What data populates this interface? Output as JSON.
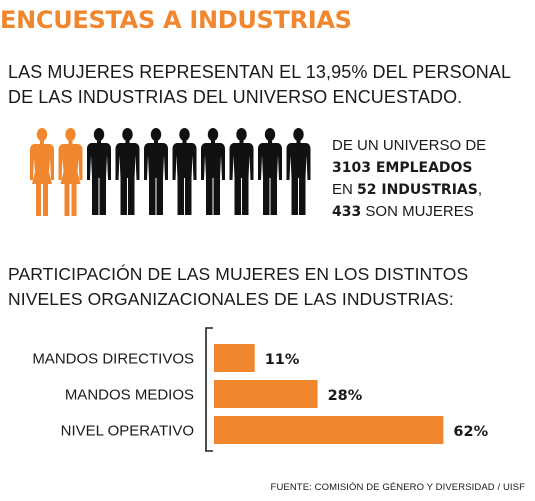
{
  "header": {
    "title": "ENCUESTAS A INDUSTRIAS",
    "lead_lines": [
      "LAS MUJERES REPRESENTAN EL 13,95% DEL PERSONAL",
      "DE LAS INDUSTRIAS DEL UNIVERSO ENCUESTADO."
    ]
  },
  "pictogram": {
    "women_count": 2,
    "men_count": 8,
    "women_color": "#f0862e",
    "men_color": "#111111"
  },
  "stats": {
    "line1": "DE UN UNIVERSO DE",
    "employees_bold": "3103 EMPLEADOS",
    "line3_prefix": "EN ",
    "industries_bold": "52 INDUSTRIAS",
    "line3_suffix": ",",
    "women_bold": "433",
    "line4_suffix": " SON MUJERES"
  },
  "subtitle_lines": [
    "PARTICIPACIÓN DE LAS MUJERES EN LOS DISTINTOS",
    "NIVELES ORGANIZACIONALES DE LAS INDUSTRIAS:"
  ],
  "chart_data": {
    "type": "bar",
    "orientation": "horizontal",
    "categories": [
      "MANDOS DIRECTIVOS",
      "MANDOS MEDIOS",
      "NIVEL OPERATIVO"
    ],
    "values": [
      11,
      28,
      62
    ],
    "value_labels": [
      "11%",
      "28%",
      "62%"
    ],
    "unit": "%",
    "bar_color": "#f0862e",
    "xlim": [
      0,
      100
    ],
    "title": "",
    "xlabel": "",
    "ylabel": "",
    "grid": false,
    "legend": "none"
  },
  "source": "FUENTE: COMISIÓN DE GÉNERO Y DIVERSIDAD / UISF"
}
